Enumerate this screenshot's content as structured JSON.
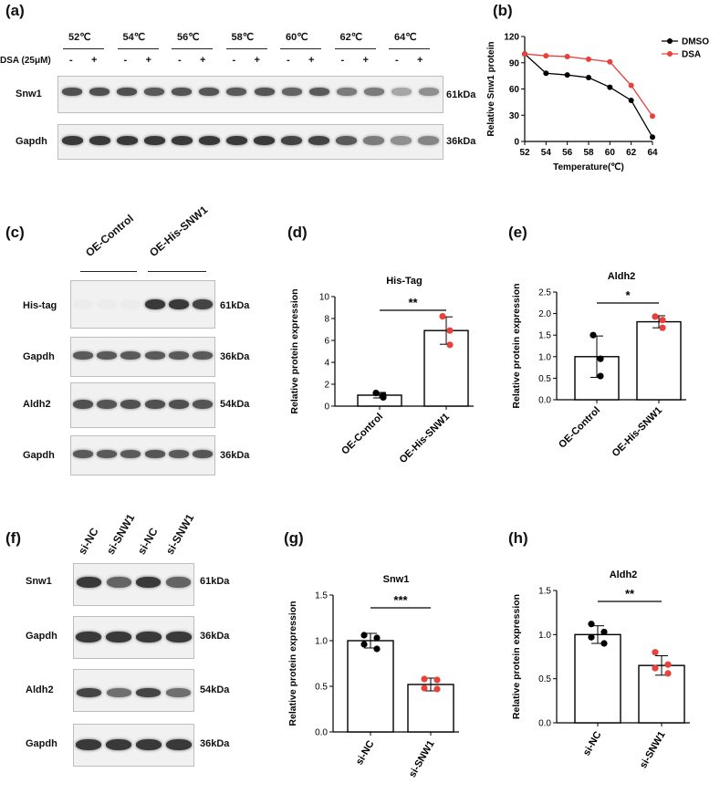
{
  "panels": {
    "a": "(a)",
    "b": "(b)",
    "c": "(c)",
    "d": "(d)",
    "e": "(e)",
    "f": "(f)",
    "g": "(g)",
    "h": "(h)"
  },
  "panel_a": {
    "temps": [
      "52℃",
      "54℃",
      "56℃",
      "58℃",
      "60℃",
      "62℃",
      "64℃"
    ],
    "dsa_label": "DSA (25μM)",
    "minus": "-",
    "plus": "+",
    "rows": [
      "Snw1",
      "Gapdh"
    ],
    "kda": [
      "61kDa",
      "36kDa"
    ]
  },
  "panel_c": {
    "groups": [
      "OE-Control",
      "OE-His-SNW1"
    ],
    "rows": [
      "His-tag",
      "Gapdh",
      "Aldh2",
      "Gapdh"
    ],
    "kda": [
      "61kDa",
      "36kDa",
      "54kDa",
      "36kDa"
    ]
  },
  "panel_f": {
    "lanes": [
      "si-NC",
      "si-SNW1",
      "si-NC",
      "si-SNW1"
    ],
    "rows": [
      "Snw1",
      "Gapdh",
      "Aldh2",
      "Gapdh"
    ],
    "kda": [
      "61kDa",
      "36kDa",
      "54kDa",
      "36kDa"
    ]
  },
  "chart_data": [
    {
      "id": "b",
      "type": "line",
      "xlabel": "Temperature(℃)",
      "ylabel": "Relative Snw1 protein",
      "x": [
        52,
        54,
        56,
        58,
        60,
        62,
        64
      ],
      "xlim": [
        52,
        64
      ],
      "ylim": [
        0,
        120
      ],
      "yticks": [
        0,
        30,
        60,
        90,
        120
      ],
      "series": [
        {
          "name": "DMSO",
          "color": "#000000",
          "values": [
            100,
            78,
            76,
            73,
            62,
            47,
            5
          ]
        },
        {
          "name": "DSA",
          "color": "#e8413c",
          "values": [
            100,
            98,
            97,
            94,
            91,
            64,
            29
          ]
        }
      ],
      "legend": "top-right",
      "grid": false
    },
    {
      "id": "d",
      "type": "bar",
      "title": "His-Tag",
      "ylabel": "Relative protein expression",
      "categories": [
        "OE-Control",
        "OE-His-SNW1"
      ],
      "values": [
        1.0,
        6.9
      ],
      "errors": [
        0.25,
        1.25
      ],
      "points": [
        [
          1.2,
          0.8,
          1.0
        ],
        [
          8.2,
          6.9,
          5.6
        ]
      ],
      "point_colors": [
        "#000000",
        "#e8413c"
      ],
      "ylim": [
        0,
        10
      ],
      "yticks": [
        "0",
        "2",
        "4",
        "6",
        "8",
        "10"
      ],
      "significance": "**"
    },
    {
      "id": "e",
      "type": "bar",
      "title": "Aldh2",
      "ylabel": "Relative protein expression",
      "categories": [
        "OE-Control",
        "OE-His-SNW1"
      ],
      "values": [
        1.0,
        1.81
      ],
      "errors": [
        0.48,
        0.14
      ],
      "points": [
        [
          1.5,
          0.95,
          0.55
        ],
        [
          1.93,
          1.85,
          1.67
        ]
      ],
      "point_colors": [
        "#000000",
        "#e8413c"
      ],
      "ylim": [
        0,
        2.5
      ],
      "yticks": [
        "0.0",
        "0.5",
        "1.0",
        "1.5",
        "2.0",
        "2.5"
      ],
      "significance": "*"
    },
    {
      "id": "g",
      "type": "bar",
      "title": "Snw1",
      "ylabel": "Relative protein expression",
      "categories": [
        "si-NC",
        "si-SNW1"
      ],
      "values": [
        1.0,
        0.52
      ],
      "errors": [
        0.08,
        0.07
      ],
      "points": [
        [
          1.06,
          1.03,
          0.96,
          0.91
        ],
        [
          0.58,
          0.57,
          0.48,
          0.47
        ]
      ],
      "point_colors": [
        "#000000",
        "#e8413c"
      ],
      "ylim": [
        0,
        1.5
      ],
      "yticks": [
        "0.0",
        "0.5",
        "1.0",
        "1.5"
      ],
      "significance": "***"
    },
    {
      "id": "h",
      "type": "bar",
      "title": "Aldh2",
      "ylabel": "Relative protein expression",
      "categories": [
        "si-NC",
        "si-SNW1"
      ],
      "values": [
        1.0,
        0.65
      ],
      "errors": [
        0.1,
        0.11
      ],
      "points": [
        [
          1.12,
          1.03,
          0.97,
          0.9
        ],
        [
          0.8,
          0.66,
          0.62,
          0.56
        ]
      ],
      "point_colors": [
        "#000000",
        "#e8413c"
      ],
      "ylim": [
        0,
        1.5
      ],
      "yticks": [
        "0.0",
        "0.5",
        "1.0",
        "1.5"
      ],
      "significance": "**"
    }
  ]
}
